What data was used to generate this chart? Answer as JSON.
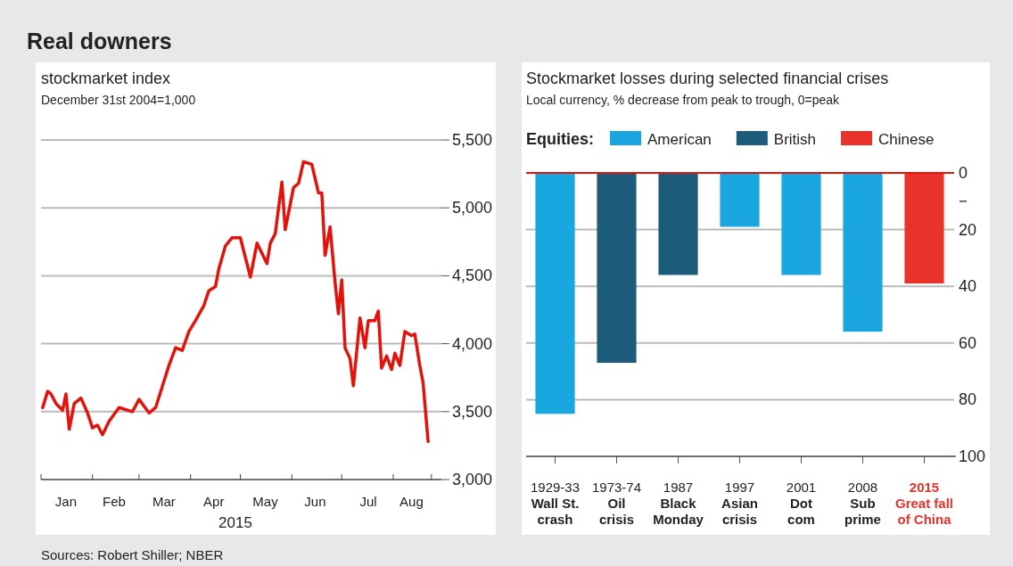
{
  "chart_data": [
    {
      "type": "other",
      "title": "Real downers",
      "annotations": [
        "Sources: Robert Shiller; NBER"
      ]
    },
    {
      "type": "line",
      "title": "stockmarket index",
      "subtitle": "December 31st 2004=1,000",
      "xlabel": "2015",
      "xlim": [
        "2015-01-01",
        "2015-08-30"
      ],
      "xticks": [
        {
          "value": "2015-01-01",
          "label": null
        },
        {
          "value": "2015-01-16",
          "label": "Jan"
        },
        {
          "value": "2015-02-01",
          "label": null
        },
        {
          "value": "2015-02-14",
          "label": "Feb"
        },
        {
          "value": "2015-03-01",
          "label": null
        },
        {
          "value": "2015-03-16",
          "label": "Mar"
        },
        {
          "value": "2015-04-01",
          "label": null
        },
        {
          "value": "2015-04-15",
          "label": "Apr"
        },
        {
          "value": "2015-05-01",
          "label": null
        },
        {
          "value": "2015-05-16",
          "label": "May"
        },
        {
          "value": "2015-06-01",
          "label": null
        },
        {
          "value": "2015-06-15",
          "label": "Jun"
        },
        {
          "value": "2015-07-01",
          "label": null
        },
        {
          "value": "2015-07-17",
          "label": "Jul"
        },
        {
          "value": "2015-08-01",
          "label": null
        },
        {
          "value": "2015-08-12",
          "label": "Aug"
        },
        {
          "value": "2015-08-24",
          "label": null
        }
      ],
      "ylim": [
        3000,
        5500
      ],
      "yticks": [
        {
          "value": 3000,
          "label": "3,000"
        },
        {
          "value": 3500,
          "label": "3,500"
        },
        {
          "value": 4000,
          "label": "4,000"
        },
        {
          "value": 4500,
          "label": "4,500"
        },
        {
          "value": 5000,
          "label": "5,000"
        },
        {
          "value": 5500,
          "label": "5,500"
        }
      ],
      "grid": "y",
      "series": [
        {
          "color": "#e3120b",
          "x": [
            "2015-01-02",
            "2015-01-05",
            "2015-01-07",
            "2015-01-10",
            "2015-01-14",
            "2015-01-16",
            "2015-01-18",
            "2015-01-21",
            "2015-01-25",
            "2015-01-29",
            "2015-02-01",
            "2015-02-04",
            "2015-02-07",
            "2015-02-11",
            "2015-02-17",
            "2015-02-25",
            "2015-03-01",
            "2015-03-07",
            "2015-03-11",
            "2015-03-19",
            "2015-03-23",
            "2015-03-27",
            "2015-03-31",
            "2015-04-04",
            "2015-04-09",
            "2015-04-12",
            "2015-04-16",
            "2015-04-18",
            "2015-04-22",
            "2015-04-26",
            "2015-05-01",
            "2015-05-07",
            "2015-05-11",
            "2015-05-17",
            "2015-05-19",
            "2015-05-22",
            "2015-05-26",
            "2015-05-28",
            "2015-06-02",
            "2015-06-05",
            "2015-06-08",
            "2015-06-13",
            "2015-06-17",
            "2015-06-19",
            "2015-06-21",
            "2015-06-24",
            "2015-06-27",
            "2015-06-29",
            "2015-07-01",
            "2015-07-03",
            "2015-07-06",
            "2015-07-08",
            "2015-07-12",
            "2015-07-15",
            "2015-07-17",
            "2015-07-21",
            "2015-07-23",
            "2015-07-25",
            "2015-07-28",
            "2015-07-31",
            "2015-08-02",
            "2015-08-05",
            "2015-08-08",
            "2015-08-12",
            "2015-08-14",
            "2015-08-17",
            "2015-08-19",
            "2015-08-22"
          ],
          "values": [
            3530,
            3650,
            3630,
            3560,
            3510,
            3630,
            3370,
            3560,
            3600,
            3490,
            3380,
            3400,
            3330,
            3430,
            3530,
            3500,
            3590,
            3490,
            3530,
            3840,
            3970,
            3950,
            4090,
            4170,
            4280,
            4390,
            4420,
            4550,
            4720,
            4780,
            4780,
            4490,
            4740,
            4590,
            4740,
            4810,
            5190,
            4840,
            5150,
            5180,
            5340,
            5320,
            5110,
            5110,
            4650,
            4860,
            4450,
            4220,
            4470,
            3970,
            3890,
            3690,
            4190,
            3970,
            4170,
            4170,
            4240,
            3820,
            3910,
            3810,
            3930,
            3840,
            4090,
            4060,
            4070,
            3840,
            3710,
            3280
          ]
        }
      ]
    },
    {
      "type": "bar",
      "title": "Stockmarket losses during selected financial crises",
      "subtitle": "Local currency, % decrease from peak to trough, 0=peak",
      "legend_title": "Equities:",
      "legend": "top",
      "grid": "y",
      "categories": [
        "1929-33\nWall St.\ncrash",
        "1973-74\nOil\ncrisis",
        "1987\nBlack\nMonday",
        "1997\nAsian\ncrisis",
        "2001\nDot\ncom",
        "2008\nSub\nprime",
        "2015\nGreat fall\nof China"
      ],
      "ylim": [
        100,
        0
      ],
      "yticks": [
        0,
        {
          "value": 10,
          "label": null
        },
        20,
        40,
        60,
        80,
        100
      ],
      "ref_lines": [
        {
          "axis": "y",
          "value": 0,
          "color": "#e3120b"
        }
      ],
      "series": [
        {
          "name": "American",
          "color": "#1aa7df",
          "values": [
            85,
            null,
            null,
            19,
            36,
            56,
            null
          ]
        },
        {
          "name": "British",
          "color": "#1d5b7b",
          "values": [
            null,
            67,
            36,
            null,
            null,
            null,
            null
          ]
        },
        {
          "name": "Chinese",
          "color": "#e8322a",
          "values": [
            null,
            null,
            null,
            null,
            null,
            null,
            39
          ]
        }
      ]
    }
  ]
}
